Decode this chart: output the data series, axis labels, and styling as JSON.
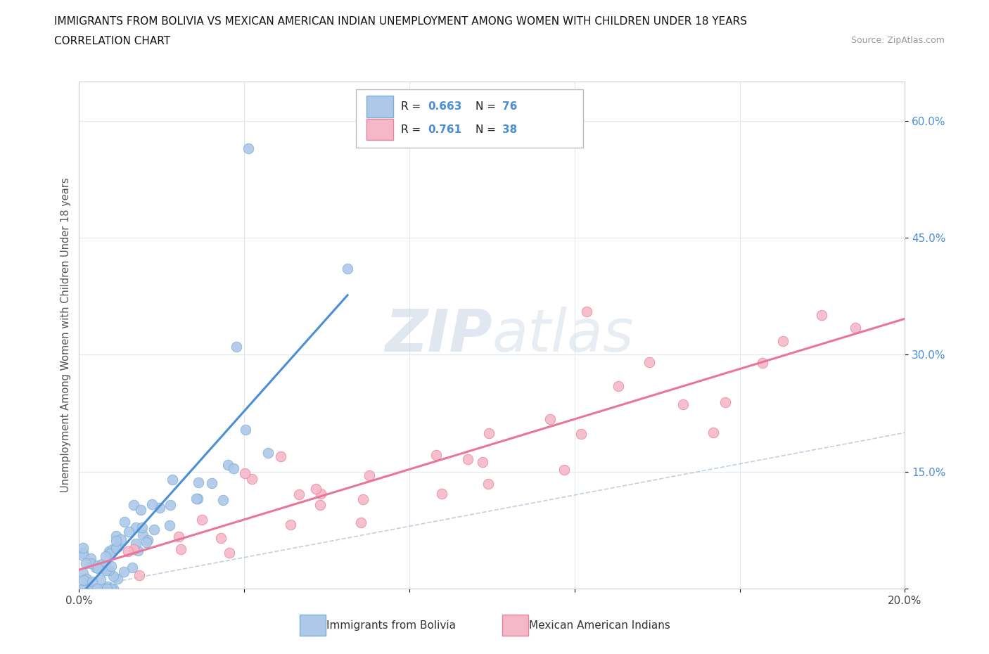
{
  "title_line1": "IMMIGRANTS FROM BOLIVIA VS MEXICAN AMERICAN INDIAN UNEMPLOYMENT AMONG WOMEN WITH CHILDREN UNDER 18 YEARS",
  "title_line2": "CORRELATION CHART",
  "source_text": "Source: ZipAtlas.com",
  "ylabel": "Unemployment Among Women with Children Under 18 years",
  "xlim": [
    0.0,
    0.2
  ],
  "ylim": [
    0.0,
    0.65
  ],
  "color_bolivia": "#adc8e8",
  "color_bolivia_edge": "#7aafd4",
  "color_mexican": "#f5b8c8",
  "color_mexican_edge": "#e8809a",
  "color_bolivia_line": "#4a8fd4",
  "color_mexican_line": "#e8769a",
  "color_diagonal": "#b8c8d8",
  "watermark_color": "#ccd8e8",
  "r1": "0.663",
  "n1": "76",
  "r2": "0.761",
  "n2": "38"
}
